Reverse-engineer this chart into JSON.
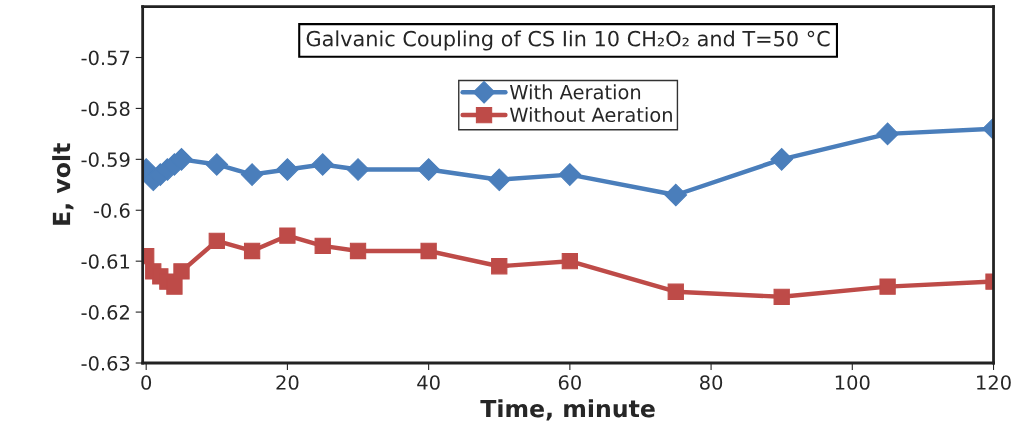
{
  "chart_data": {
    "type": "line",
    "title": "Galvanic Coupling of CS Iin 10 CH₂O₂ and T=50 °C",
    "xlabel": "Time, minute",
    "ylabel": "E, volt",
    "series": [
      {
        "name": "With Aeration",
        "color": "#4a7ebb",
        "marker": "diamond",
        "x": [
          0,
          1,
          2,
          3,
          4,
          5,
          10,
          15,
          20,
          25,
          30,
          40,
          50,
          60,
          75,
          90,
          105,
          120
        ],
        "values": [
          -0.592,
          -0.594,
          -0.593,
          -0.592,
          -0.591,
          -0.59,
          -0.591,
          -0.593,
          -0.592,
          -0.591,
          -0.592,
          -0.592,
          -0.594,
          -0.593,
          -0.597,
          -0.59,
          -0.585,
          -0.584
        ]
      },
      {
        "name": "Without Aeration",
        "color": "#be4b48",
        "marker": "square",
        "x": [
          0,
          1,
          2,
          3,
          4,
          5,
          10,
          15,
          20,
          25,
          30,
          40,
          50,
          60,
          75,
          90,
          105,
          120
        ],
        "values": [
          -0.609,
          -0.612,
          -0.613,
          -0.614,
          -0.615,
          -0.612,
          -0.606,
          -0.608,
          -0.605,
          -0.607,
          -0.608,
          -0.608,
          -0.611,
          -0.61,
          -0.616,
          -0.617,
          -0.615,
          -0.614
        ]
      }
    ],
    "xlim": [
      -0.5,
      120
    ],
    "xticks": [
      0,
      20,
      40,
      60,
      80,
      100,
      120
    ],
    "ylim": [
      -0.63,
      -0.56
    ],
    "yticks": [
      -0.63,
      -0.62,
      -0.61,
      -0.6,
      -0.59,
      -0.58,
      -0.57
    ],
    "grid": false,
    "legend": "top",
    "line_style": "solid"
  }
}
